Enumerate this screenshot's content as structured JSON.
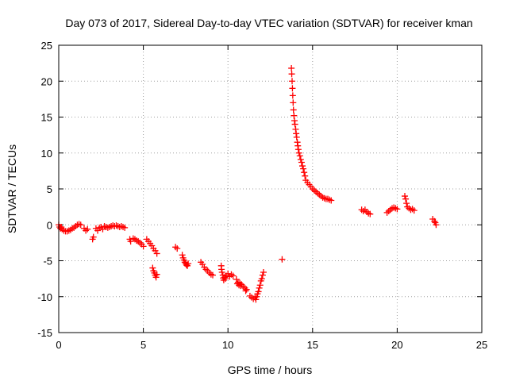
{
  "chart_data": {
    "type": "scatter",
    "title": "Day 073 of 2017, Sidereal Day-to-day VTEC variation (SDTVAR) for receiver kman",
    "xlabel": "GPS time / hours",
    "ylabel": "SDTVAR / TECUs",
    "xlim": [
      0,
      25
    ],
    "ylim": [
      -15,
      25
    ],
    "xticks": [
      0,
      5,
      10,
      15,
      20,
      25
    ],
    "yticks": [
      -15,
      -10,
      -5,
      0,
      5,
      10,
      15,
      20,
      25
    ],
    "grid": true,
    "marker": "plus",
    "series_color": "#ff0000",
    "series": [
      {
        "name": "SDTVAR",
        "points": [
          [
            0.0,
            0.0
          ],
          [
            0.05,
            -0.3
          ],
          [
            0.1,
            -0.5
          ],
          [
            0.15,
            -0.3
          ],
          [
            0.2,
            -0.6
          ],
          [
            0.3,
            -0.8
          ],
          [
            0.4,
            -0.9
          ],
          [
            0.5,
            -0.9
          ],
          [
            0.6,
            -0.8
          ],
          [
            0.7,
            -0.7
          ],
          [
            0.8,
            -0.5
          ],
          [
            0.9,
            -0.4
          ],
          [
            1.0,
            -0.2
          ],
          [
            1.1,
            0.0
          ],
          [
            1.2,
            0.1
          ],
          [
            1.3,
            0.0
          ],
          [
            1.5,
            -0.5
          ],
          [
            1.6,
            -0.8
          ],
          [
            1.7,
            -0.6
          ],
          [
            2.0,
            -2.0
          ],
          [
            2.05,
            -1.7
          ],
          [
            2.2,
            -0.5
          ],
          [
            2.3,
            -0.8
          ],
          [
            2.4,
            -0.4
          ],
          [
            2.5,
            -0.3
          ],
          [
            2.6,
            -0.6
          ],
          [
            2.7,
            -0.2
          ],
          [
            2.8,
            -0.3
          ],
          [
            2.9,
            -0.4
          ],
          [
            3.0,
            -0.3
          ],
          [
            3.1,
            -0.2
          ],
          [
            3.2,
            -0.1
          ],
          [
            3.3,
            -0.2
          ],
          [
            3.4,
            -0.1
          ],
          [
            3.5,
            -0.2
          ],
          [
            3.6,
            -0.3
          ],
          [
            3.7,
            -0.2
          ],
          [
            3.8,
            -0.3
          ],
          [
            3.9,
            -0.4
          ],
          [
            4.2,
            -2.0
          ],
          [
            4.25,
            -2.3
          ],
          [
            4.4,
            -1.9
          ],
          [
            4.5,
            -2.0
          ],
          [
            4.6,
            -2.2
          ],
          [
            4.7,
            -2.3
          ],
          [
            4.8,
            -2.5
          ],
          [
            4.9,
            -2.7
          ],
          [
            5.0,
            -3.0
          ],
          [
            5.2,
            -2.0
          ],
          [
            5.3,
            -2.3
          ],
          [
            5.4,
            -2.6
          ],
          [
            5.5,
            -2.9
          ],
          [
            5.6,
            -3.3
          ],
          [
            5.7,
            -3.6
          ],
          [
            5.8,
            -4.0
          ],
          [
            5.55,
            -6.0
          ],
          [
            5.6,
            -6.4
          ],
          [
            5.65,
            -6.7
          ],
          [
            5.7,
            -7.0
          ],
          [
            5.75,
            -7.3
          ],
          [
            5.8,
            -6.9
          ],
          [
            6.9,
            -3.1
          ],
          [
            7.0,
            -3.3
          ],
          [
            7.3,
            -4.2
          ],
          [
            7.35,
            -4.6
          ],
          [
            7.4,
            -4.9
          ],
          [
            7.45,
            -5.2
          ],
          [
            7.5,
            -5.4
          ],
          [
            7.55,
            -5.6
          ],
          [
            7.6,
            -5.7
          ],
          [
            7.65,
            -5.4
          ],
          [
            8.4,
            -5.2
          ],
          [
            8.5,
            -5.5
          ],
          [
            8.6,
            -5.9
          ],
          [
            8.7,
            -6.2
          ],
          [
            8.8,
            -6.4
          ],
          [
            8.9,
            -6.7
          ],
          [
            9.0,
            -6.9
          ],
          [
            9.1,
            -7.0
          ],
          [
            9.6,
            -5.7
          ],
          [
            9.62,
            -6.2
          ],
          [
            9.65,
            -6.6
          ],
          [
            9.7,
            -7.0
          ],
          [
            9.72,
            -7.4
          ],
          [
            9.75,
            -7.7
          ],
          [
            9.8,
            -7.3
          ],
          [
            9.85,
            -7.5
          ],
          [
            9.9,
            -7.1
          ],
          [
            10.0,
            -6.8
          ],
          [
            10.1,
            -7.2
          ],
          [
            10.2,
            -6.9
          ],
          [
            10.3,
            -7.1
          ],
          [
            10.5,
            -7.6
          ],
          [
            10.55,
            -8.2
          ],
          [
            10.6,
            -8.0
          ],
          [
            10.65,
            -8.4
          ],
          [
            10.7,
            -8.1
          ],
          [
            10.75,
            -8.5
          ],
          [
            10.8,
            -8.3
          ],
          [
            10.9,
            -8.6
          ],
          [
            11.0,
            -8.8
          ],
          [
            11.05,
            -9.2
          ],
          [
            11.1,
            -9.0
          ],
          [
            11.3,
            -9.9
          ],
          [
            11.4,
            -10.1
          ],
          [
            11.5,
            -10.3
          ],
          [
            11.6,
            -10.1
          ],
          [
            11.65,
            -10.4
          ],
          [
            11.7,
            -10.0
          ],
          [
            11.75,
            -9.6
          ],
          [
            11.8,
            -9.3
          ],
          [
            11.85,
            -8.8
          ],
          [
            11.9,
            -8.4
          ],
          [
            11.95,
            -7.8
          ],
          [
            12.0,
            -7.5
          ],
          [
            12.05,
            -7.0
          ],
          [
            12.1,
            -6.6
          ],
          [
            13.2,
            -4.8
          ],
          [
            13.75,
            21.8
          ],
          [
            13.77,
            21.0
          ],
          [
            13.79,
            20.0
          ],
          [
            13.81,
            19.0
          ],
          [
            13.83,
            18.0
          ],
          [
            13.85,
            17.0
          ],
          [
            13.87,
            16.0
          ],
          [
            13.9,
            15.2
          ],
          [
            13.93,
            14.5
          ],
          [
            13.96,
            14.0
          ],
          [
            14.0,
            13.3
          ],
          [
            14.03,
            12.7
          ],
          [
            14.06,
            12.2
          ],
          [
            14.1,
            11.5
          ],
          [
            14.13,
            11.0
          ],
          [
            14.16,
            10.5
          ],
          [
            14.2,
            10.0
          ],
          [
            14.25,
            9.6
          ],
          [
            14.3,
            9.1
          ],
          [
            14.35,
            8.7
          ],
          [
            14.4,
            8.2
          ],
          [
            14.45,
            7.8
          ],
          [
            14.5,
            7.3
          ],
          [
            14.55,
            6.8
          ],
          [
            14.6,
            6.2
          ],
          [
            14.7,
            5.9
          ],
          [
            14.8,
            5.6
          ],
          [
            14.9,
            5.3
          ],
          [
            15.0,
            5.0
          ],
          [
            15.1,
            4.8
          ],
          [
            15.2,
            4.6
          ],
          [
            15.3,
            4.4
          ],
          [
            15.4,
            4.2
          ],
          [
            15.5,
            4.0
          ],
          [
            15.6,
            3.8
          ],
          [
            15.7,
            3.7
          ],
          [
            15.8,
            3.6
          ],
          [
            15.9,
            3.6
          ],
          [
            16.0,
            3.5
          ],
          [
            16.1,
            3.4
          ],
          [
            17.9,
            2.1
          ],
          [
            18.0,
            1.9
          ],
          [
            18.1,
            2.1
          ],
          [
            18.2,
            1.8
          ],
          [
            18.3,
            1.6
          ],
          [
            18.4,
            1.5
          ],
          [
            19.4,
            1.7
          ],
          [
            19.5,
            1.9
          ],
          [
            19.6,
            2.1
          ],
          [
            19.7,
            2.3
          ],
          [
            19.8,
            2.4
          ],
          [
            19.9,
            2.3
          ],
          [
            20.0,
            2.2
          ],
          [
            20.45,
            4.0
          ],
          [
            20.5,
            3.6
          ],
          [
            20.55,
            3.0
          ],
          [
            20.6,
            2.5
          ],
          [
            20.7,
            2.3
          ],
          [
            20.8,
            2.1
          ],
          [
            20.9,
            2.2
          ],
          [
            21.0,
            2.0
          ],
          [
            22.1,
            0.8
          ],
          [
            22.2,
            0.5
          ],
          [
            22.25,
            0.3
          ],
          [
            22.3,
            0.0
          ]
        ]
      }
    ]
  }
}
